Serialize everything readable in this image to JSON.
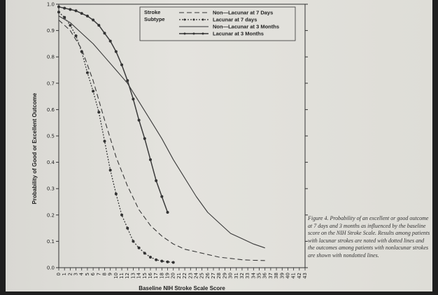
{
  "chart_data": {
    "type": "line",
    "title": "",
    "xlabel": "Baseline NIH Stroke Scale Score",
    "ylabel": "Probability of Good or Excellent Outcome",
    "xlim": [
      0,
      43
    ],
    "ylim": [
      0,
      1.0
    ],
    "x_ticks": [
      0,
      1,
      2,
      3,
      4,
      5,
      6,
      7,
      8,
      9,
      10,
      11,
      12,
      13,
      14,
      15,
      16,
      17,
      18,
      19,
      20,
      21,
      22,
      23,
      24,
      25,
      26,
      27,
      28,
      29,
      30,
      31,
      32,
      33,
      34,
      35,
      36,
      37,
      38,
      39,
      40,
      41,
      42,
      43
    ],
    "y_ticks": [
      "0.0",
      "0.1",
      "0.2",
      "0.3",
      "0.4",
      "0.5",
      "0.6",
      "0.7",
      "0.8",
      "0.9",
      "1.0"
    ],
    "legend": {
      "title_lines": [
        "Stroke",
        "Subtype"
      ],
      "placement": "top-center"
    },
    "series": [
      {
        "name": "Non—Lacunar at 7 Days",
        "style": "dashed",
        "x": [
          0,
          2,
          4,
          6,
          8,
          10,
          12,
          14,
          16,
          18,
          20,
          22,
          24,
          26,
          28,
          30,
          32,
          34,
          36
        ],
        "y": [
          0.94,
          0.9,
          0.83,
          0.71,
          0.56,
          0.42,
          0.31,
          0.22,
          0.16,
          0.12,
          0.09,
          0.07,
          0.06,
          0.05,
          0.04,
          0.035,
          0.03,
          0.028,
          0.027
        ]
      },
      {
        "name": "Lacunar at 7 days",
        "style": "dotted-markers",
        "x": [
          0,
          1,
          2,
          3,
          4,
          5,
          6,
          7,
          8,
          9,
          10,
          11,
          12,
          13,
          14,
          15,
          16,
          17,
          18,
          19,
          20
        ],
        "y": [
          0.97,
          0.95,
          0.92,
          0.88,
          0.82,
          0.74,
          0.67,
          0.59,
          0.48,
          0.37,
          0.28,
          0.2,
          0.15,
          0.1,
          0.075,
          0.055,
          0.04,
          0.03,
          0.025,
          0.022,
          0.02
        ]
      },
      {
        "name": "Non—Lacunar at 3 Months",
        "style": "solid",
        "x": [
          0,
          2,
          4,
          6,
          8,
          10,
          12,
          14,
          16,
          18,
          20,
          22,
          24,
          26,
          28,
          30,
          32,
          34,
          36
        ],
        "y": [
          0.955,
          0.93,
          0.89,
          0.85,
          0.8,
          0.75,
          0.7,
          0.63,
          0.56,
          0.49,
          0.41,
          0.34,
          0.27,
          0.21,
          0.17,
          0.13,
          0.11,
          0.09,
          0.075
        ]
      },
      {
        "name": "Lacunar at 3 Months",
        "style": "solid-markers",
        "x": [
          0,
          1,
          2,
          3,
          4,
          5,
          6,
          7,
          8,
          9,
          10,
          11,
          12,
          13,
          14,
          15,
          16,
          17,
          18,
          19
        ],
        "y": [
          0.99,
          0.985,
          0.98,
          0.975,
          0.965,
          0.955,
          0.94,
          0.92,
          0.89,
          0.86,
          0.82,
          0.77,
          0.71,
          0.64,
          0.56,
          0.49,
          0.41,
          0.33,
          0.27,
          0.21
        ]
      }
    ]
  },
  "caption": {
    "text": "Figure 4. Probability of an excellent or good outcome at 7 days and 3 months as influenced by the baseline score on the NIH Stroke Scale. Results among patients with lacunar strokes are noted with dotted lines and the outcomes among patients with nonlacunar strokes are shown with nondotted lines."
  }
}
